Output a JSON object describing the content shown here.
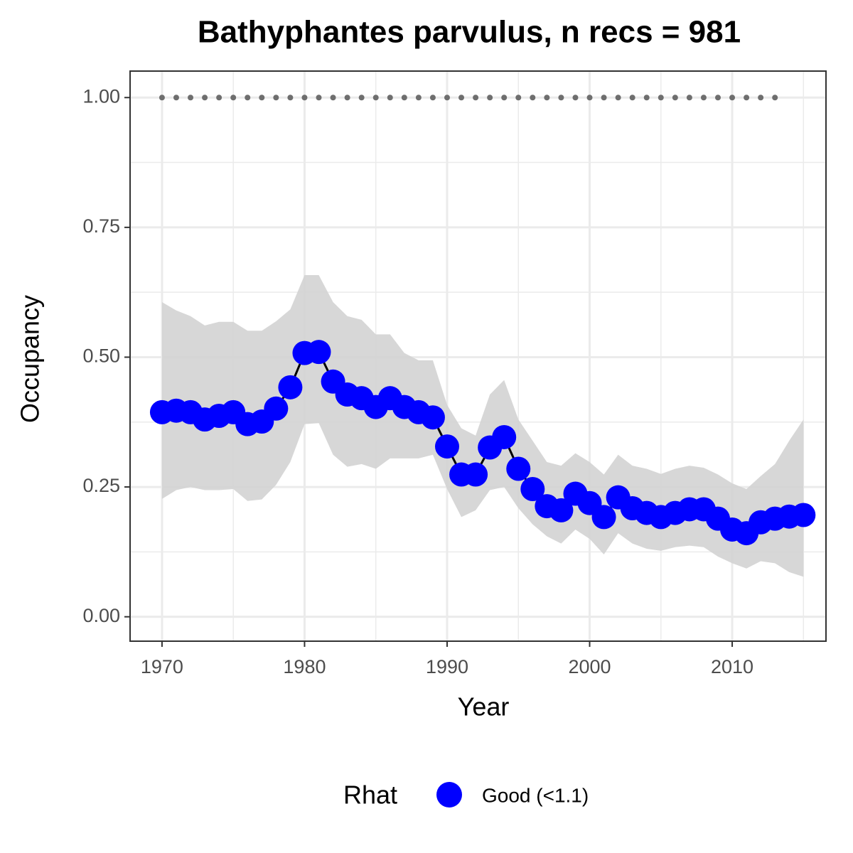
{
  "chart_data": {
    "type": "line",
    "title": "Bathyphantes parvulus, n recs = 981",
    "x_label": "Year",
    "y_label": "Occupancy",
    "x": [
      1970,
      1971,
      1972,
      1973,
      1974,
      1975,
      1976,
      1977,
      1978,
      1979,
      1980,
      1981,
      1982,
      1983,
      1984,
      1985,
      1986,
      1987,
      1988,
      1989,
      1990,
      1991,
      1992,
      1993,
      1994,
      1995,
      1996,
      1997,
      1998,
      1999,
      2000,
      2001,
      2002,
      2003,
      2004,
      2005,
      2006,
      2007,
      2008,
      2009,
      2010,
      2011,
      2012,
      2013,
      2014,
      2015
    ],
    "series": [
      {
        "name": "Good (<1.1)",
        "color": "#0000ff",
        "values": [
          0.394,
          0.397,
          0.394,
          0.38,
          0.387,
          0.394,
          0.371,
          0.376,
          0.401,
          0.442,
          0.508,
          0.51,
          0.453,
          0.428,
          0.421,
          0.404,
          0.421,
          0.404,
          0.394,
          0.384,
          0.328,
          0.274,
          0.274,
          0.326,
          0.346,
          0.285,
          0.246,
          0.213,
          0.205,
          0.237,
          0.219,
          0.192,
          0.23,
          0.209,
          0.2,
          0.192,
          0.2,
          0.207,
          0.207,
          0.189,
          0.168,
          0.161,
          0.182,
          0.189,
          0.193,
          0.196
        ],
        "upper": [
          0.606,
          0.59,
          0.579,
          0.561,
          0.568,
          0.568,
          0.551,
          0.551,
          0.569,
          0.592,
          0.658,
          0.658,
          0.606,
          0.579,
          0.572,
          0.544,
          0.544,
          0.508,
          0.494,
          0.494,
          0.408,
          0.363,
          0.349,
          0.428,
          0.456,
          0.38,
          0.339,
          0.298,
          0.291,
          0.315,
          0.298,
          0.274,
          0.312,
          0.291,
          0.285,
          0.275,
          0.285,
          0.291,
          0.287,
          0.274,
          0.257,
          0.246,
          0.271,
          0.294,
          0.339,
          0.38
        ],
        "lower": [
          0.227,
          0.244,
          0.25,
          0.244,
          0.244,
          0.246,
          0.223,
          0.226,
          0.254,
          0.298,
          0.371,
          0.373,
          0.312,
          0.289,
          0.294,
          0.285,
          0.305,
          0.305,
          0.305,
          0.312,
          0.246,
          0.192,
          0.205,
          0.244,
          0.25,
          0.209,
          0.178,
          0.155,
          0.141,
          0.168,
          0.15,
          0.12,
          0.161,
          0.141,
          0.131,
          0.127,
          0.134,
          0.137,
          0.134,
          0.116,
          0.103,
          0.093,
          0.107,
          0.103,
          0.086,
          0.077
        ]
      }
    ],
    "line_color": "#000000",
    "band_color": "#d3d3d3",
    "records": {
      "color": "#6e6e6e",
      "x": [
        1970,
        1971,
        1972,
        1973,
        1974,
        1975,
        1976,
        1977,
        1978,
        1979,
        1980,
        1981,
        1982,
        1983,
        1984,
        1985,
        1986,
        1987,
        1988,
        1989,
        1990,
        1991,
        1992,
        1993,
        1994,
        1995,
        1996,
        1997,
        1998,
        1999,
        2000,
        2001,
        2002,
        2003,
        2004,
        2005,
        2006,
        2007,
        2008,
        2009,
        2010,
        2011,
        2012,
        2013
      ],
      "values": [
        1,
        1,
        1,
        1,
        1,
        1,
        1,
        1,
        1,
        1,
        1,
        1,
        1,
        1,
        1,
        1,
        1,
        1,
        1,
        1,
        1,
        1,
        1,
        1,
        1,
        1,
        1,
        1,
        1,
        1,
        1,
        1,
        1,
        1,
        1,
        1,
        1,
        1,
        1,
        1,
        1,
        1,
        1,
        1
      ]
    },
    "legend_title": "Rhat",
    "legend_position": "bottom",
    "xlim": [
      1967.76,
      2016.58
    ],
    "ylim": [
      -0.047,
      1.051
    ],
    "xticks": [
      1970,
      1980,
      1990,
      2000,
      2010
    ],
    "x_minor_ticks": [
      1975,
      1985,
      1995,
      2005,
      2015
    ],
    "yticks": [
      {
        "value": 0,
        "label": "0.00"
      },
      {
        "value": 0.25,
        "label": "0.25"
      },
      {
        "value": 0.5,
        "label": "0.50"
      },
      {
        "value": 0.75,
        "label": "0.75"
      },
      {
        "value": 1,
        "label": "1.00"
      }
    ],
    "y_minor_ticks": [
      0.125,
      0.375,
      0.625,
      0.875
    ],
    "grid": true
  }
}
